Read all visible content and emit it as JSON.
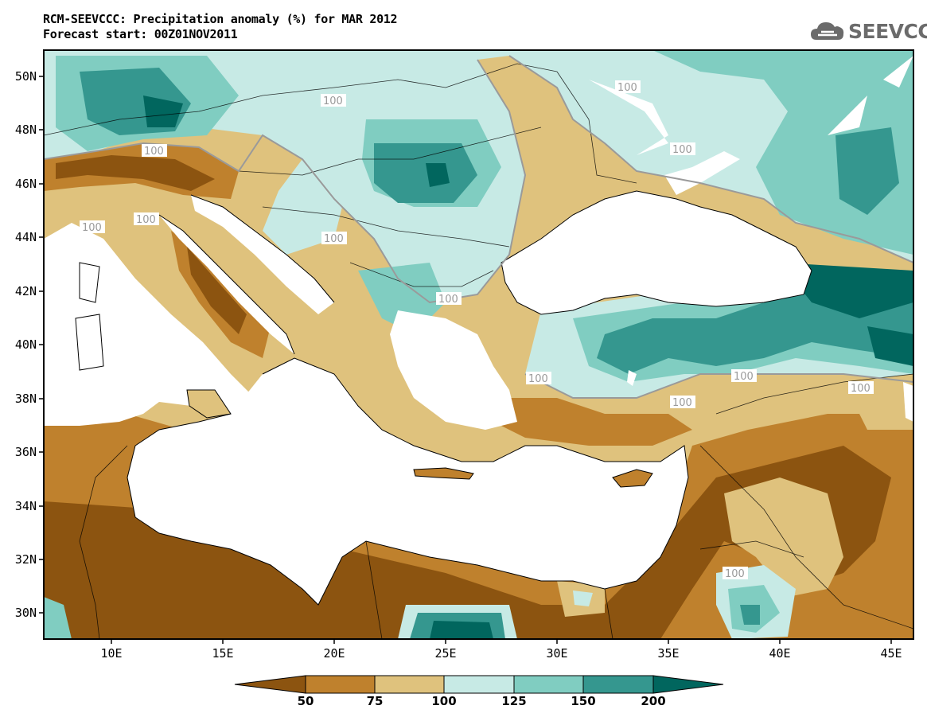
{
  "title_line1": "RCM-SEEVCCC: Precipitation anomaly (%) for MAR 2012",
  "title_line2": "Forecast start: 00Z01NOV2011",
  "logo_text": "SEEVCCC",
  "lat_labels": [
    "50N",
    "48N",
    "46N",
    "44N",
    "42N",
    "40N",
    "38N",
    "36N",
    "34N",
    "32N",
    "30N"
  ],
  "lon_labels": [
    "10E",
    "15E",
    "20E",
    "25E",
    "30E",
    "35E",
    "40E",
    "45E"
  ],
  "colorbar_labels": [
    "50",
    "75",
    "100",
    "125",
    "150",
    "200"
  ],
  "contour_label": "100",
  "colors": {
    "lt50": "#8c5410",
    "c50_75": "#bf812d",
    "c75_100": "#dfc27d",
    "c100_125": "#c7eae5",
    "c125_150": "#80cdc1",
    "c150_200": "#35978f",
    "gt200": "#01665e",
    "sea": "#ffffff",
    "contour": "#9a9a9a"
  }
}
